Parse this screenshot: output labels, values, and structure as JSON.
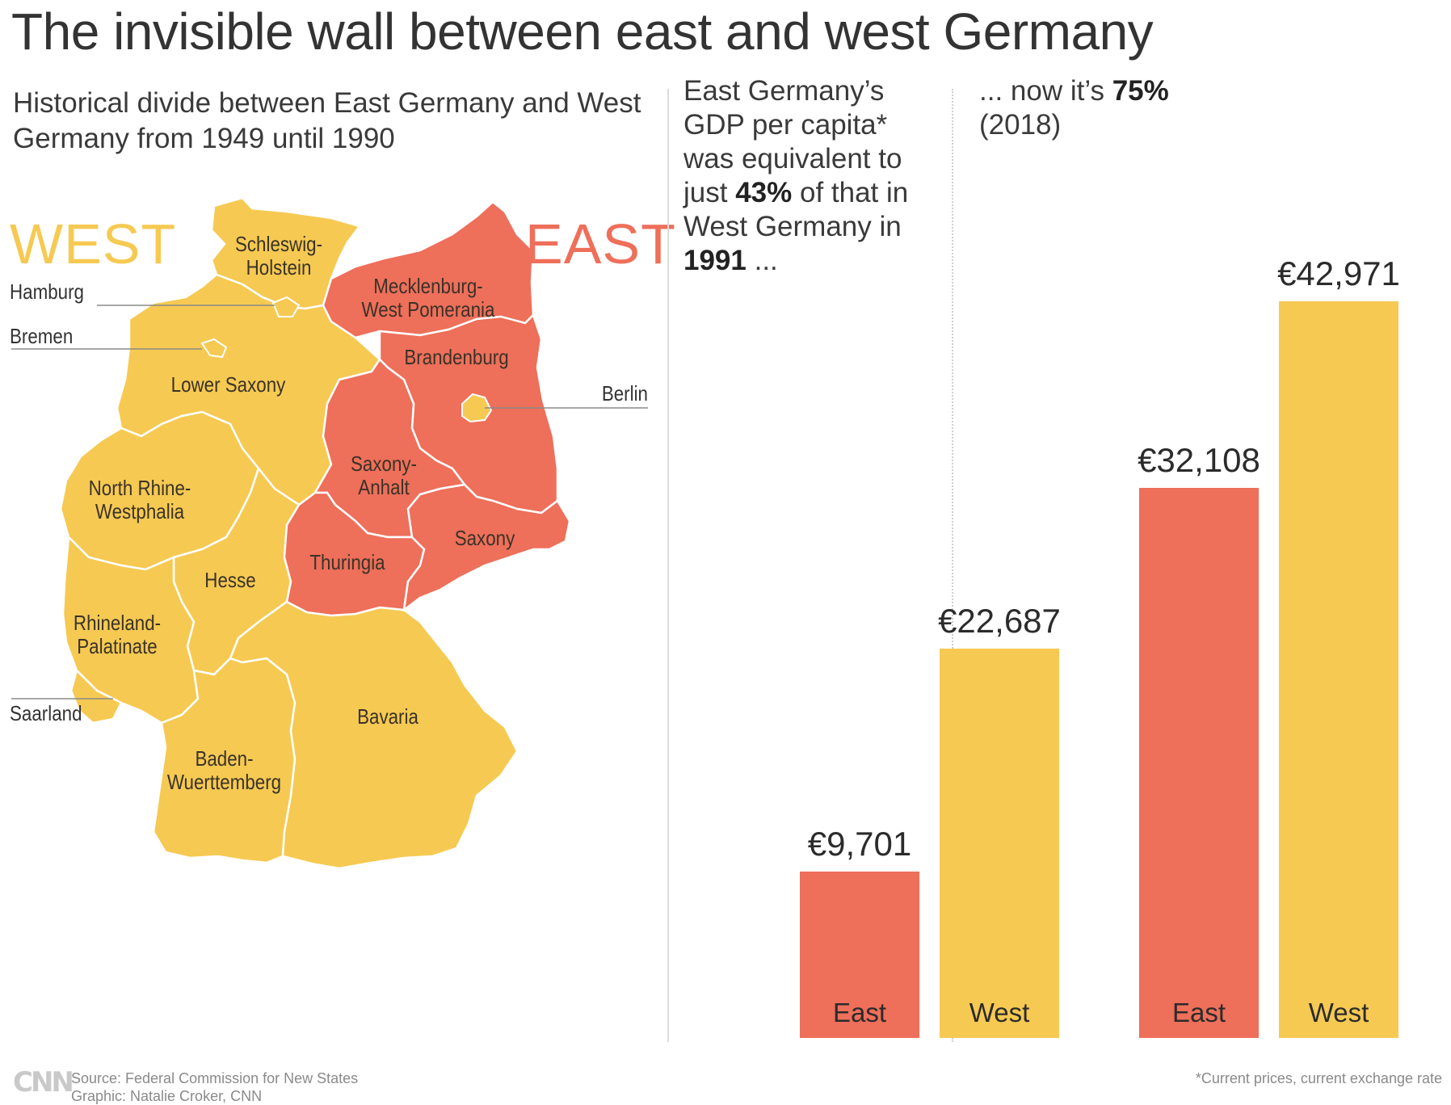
{
  "title": "The invisible wall between east and west Germany",
  "subtitle": "Historical divide between East Germany and West Germany from 1949 until 1990",
  "colors": {
    "east": "#ee6f5a",
    "west": "#f6c952",
    "border": "#ffffff"
  },
  "map": {
    "west_label": "WEST",
    "east_label": "EAST",
    "regions": {
      "schleswig": "Schleswig-\nHolstein",
      "mecklenburg": "Mecklenburg-\nWest Pomerania",
      "brandenburg": "Brandenburg",
      "lower_saxony": "Lower Saxony",
      "saxony_anhalt": "Saxony-\nAnhalt",
      "nrw": "North Rhine-\nWestphalia",
      "saxony": "Saxony",
      "thuringia": "Thuringia",
      "hesse": "Hesse",
      "rhineland": "Rhineland-\nPalatinate",
      "bavaria": "Bavaria",
      "baden": "Baden-\nWuerttemberg"
    },
    "callouts": {
      "hamburg": "Hamburg",
      "bremen": "Bremen",
      "berlin": "Berlin",
      "saarland": "Saarland"
    }
  },
  "panel1": {
    "text_before": "East Germany’s GDP per capita* was equivalent to just ",
    "percent": "43%",
    "text_mid": " of that in West Germany in ",
    "year": "1991",
    "text_after": " ..."
  },
  "panel2": {
    "text_before": "... now it’s ",
    "percent": "75%",
    "text_after": "(2018)"
  },
  "chart_data": [
    {
      "type": "bar",
      "title": "1991",
      "categories": [
        "East",
        "West"
      ],
      "values": [
        9701,
        22687
      ],
      "labels": [
        "€9,701",
        "€22,687"
      ],
      "colors": [
        "#ee6f5a",
        "#f6c952"
      ],
      "unit": "€",
      "ylim": [
        0,
        42971
      ]
    },
    {
      "type": "bar",
      "title": "2018",
      "categories": [
        "East",
        "West"
      ],
      "values": [
        32108,
        42971
      ],
      "labels": [
        "€32,108",
        "€42,971"
      ],
      "colors": [
        "#ee6f5a",
        "#f6c952"
      ],
      "unit": "€",
      "ylim": [
        0,
        42971
      ]
    }
  ],
  "footer": {
    "logo": "CNN",
    "source": "Source: Federal Commission for New States",
    "graphic": "Graphic: Natalie Croker, CNN",
    "note": "*Current prices, current exchange rate"
  }
}
